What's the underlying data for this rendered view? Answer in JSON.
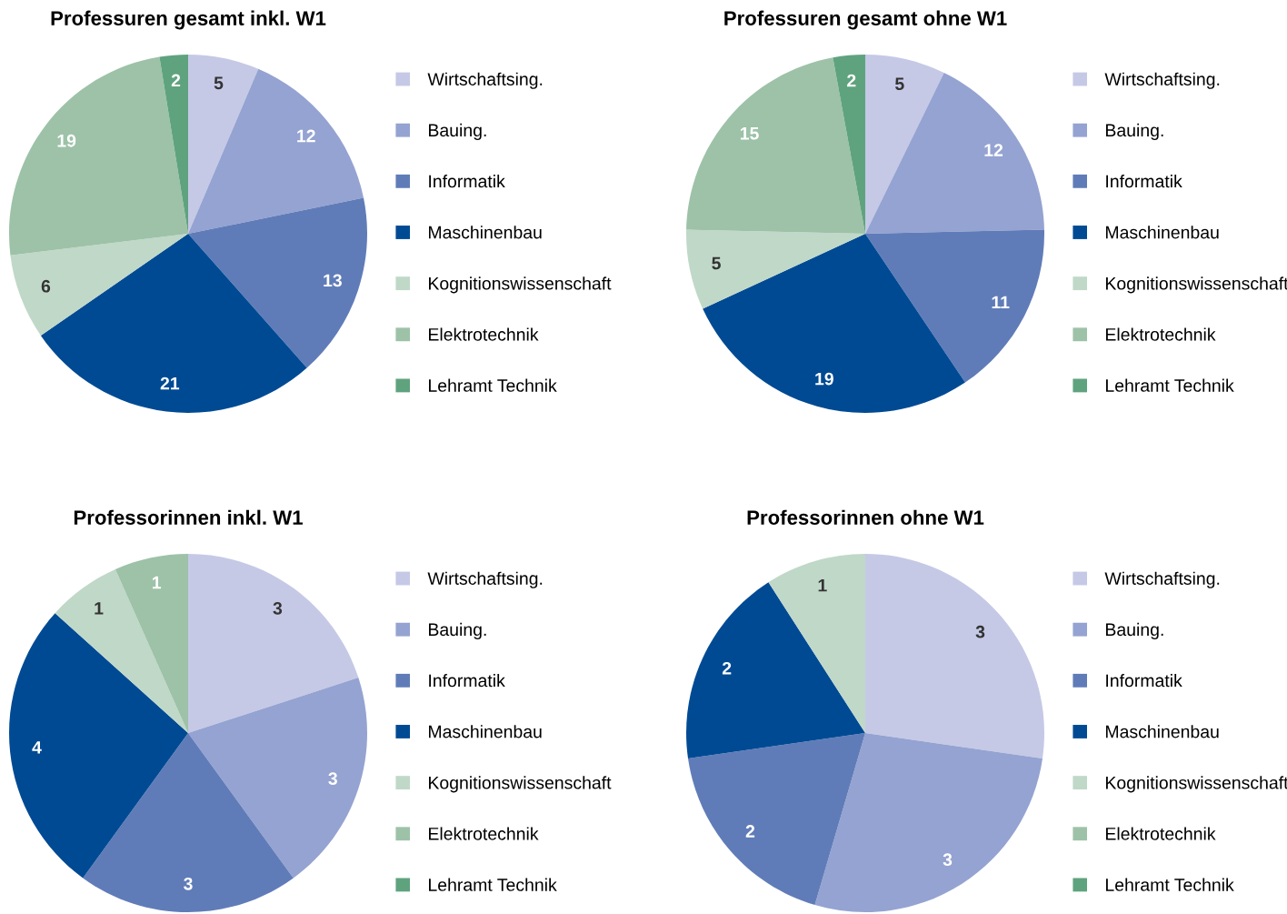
{
  "chart_data": [
    {
      "type": "pie",
      "title": "Professuren gesamt inkl. W1",
      "categories": [
        "Wirtschaftsing.",
        "Bauing.",
        "Informatik",
        "Maschinenbau",
        "Kognitionswissenschaft",
        "Elektrotechnik",
        "Lehramt Technik"
      ],
      "values": [
        5,
        12,
        13,
        21,
        6,
        19,
        2
      ],
      "colors": [
        "#c5c9e6",
        "#94a3d1",
        "#607cb8",
        "#004a94",
        "#c0d8c8",
        "#9dc2a8",
        "#5fa37e"
      ],
      "data_labels": true,
      "legend": "right"
    },
    {
      "type": "pie",
      "title": "Professuren gesamt ohne W1",
      "categories": [
        "Wirtschaftsing.",
        "Bauing.",
        "Informatik",
        "Maschinenbau",
        "Kognitionswissenschaft",
        "Elektrotechnik",
        "Lehramt Technik"
      ],
      "values": [
        5,
        12,
        11,
        19,
        5,
        15,
        2
      ],
      "colors": [
        "#c5c9e6",
        "#94a3d1",
        "#607cb8",
        "#004a94",
        "#c0d8c8",
        "#9dc2a8",
        "#5fa37e"
      ],
      "data_labels": true,
      "legend": "right"
    },
    {
      "type": "pie",
      "title": "Professorinnen inkl. W1",
      "categories": [
        "Wirtschaftsing.",
        "Bauing.",
        "Informatik",
        "Maschinenbau",
        "Kognitionswissenschaft",
        "Elektrotechnik",
        "Lehramt Technik"
      ],
      "values": [
        3,
        3,
        3,
        4,
        1,
        1,
        0
      ],
      "colors": [
        "#c5c9e6",
        "#94a3d1",
        "#607cb8",
        "#004a94",
        "#c0d8c8",
        "#9dc2a8",
        "#5fa37e"
      ],
      "data_labels": true,
      "legend": "right"
    },
    {
      "type": "pie",
      "title": "Professorinnen ohne W1",
      "categories": [
        "Wirtschaftsing.",
        "Bauing.",
        "Informatik",
        "Maschinenbau",
        "Kognitionswissenschaft",
        "Elektrotechnik",
        "Lehramt Technik"
      ],
      "values": [
        3,
        3,
        2,
        2,
        1,
        0,
        0
      ],
      "colors": [
        "#c5c9e6",
        "#94a3d1",
        "#607cb8",
        "#004a94",
        "#c0d8c8",
        "#9dc2a8",
        "#5fa37e"
      ],
      "data_labels": true,
      "legend": "right"
    }
  ]
}
